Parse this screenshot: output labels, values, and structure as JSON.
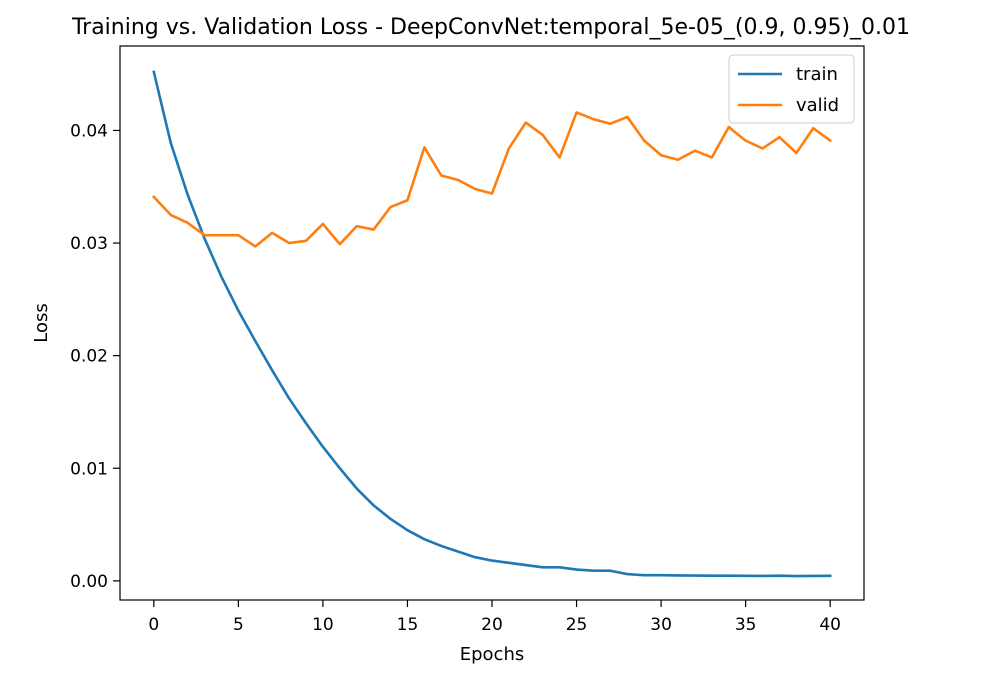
{
  "chart_data": {
    "type": "line",
    "title": "Training vs. Validation Loss - DeepConvNet:temporal_5e-05_(0.9, 0.95)_0.01",
    "xlabel": "Epochs",
    "ylabel": "Loss",
    "xlim": [
      -2,
      42
    ],
    "ylim": [
      -0.0017,
      0.0475
    ],
    "xticks": [
      0,
      5,
      10,
      15,
      20,
      25,
      30,
      35,
      40
    ],
    "xtick_labels": [
      "0",
      "5",
      "10",
      "15",
      "20",
      "25",
      "30",
      "35",
      "40"
    ],
    "yticks": [
      0.0,
      0.01,
      0.02,
      0.03,
      0.04
    ],
    "ytick_labels": [
      "0.00",
      "0.01",
      "0.02",
      "0.03",
      "0.04"
    ],
    "grid": false,
    "legend_position": "top-right",
    "x": [
      0,
      1,
      2,
      3,
      4,
      5,
      6,
      7,
      8,
      9,
      10,
      11,
      12,
      13,
      14,
      15,
      16,
      17,
      18,
      19,
      20,
      21,
      22,
      23,
      24,
      25,
      26,
      27,
      28,
      29,
      30,
      31,
      32,
      33,
      34,
      35,
      36,
      37,
      38,
      39,
      40
    ],
    "series": [
      {
        "name": "train",
        "color": "#1f77b4",
        "values": [
          0.0452,
          0.0389,
          0.0343,
          0.0304,
          0.027,
          0.024,
          0.0213,
          0.0187,
          0.0162,
          0.014,
          0.0119,
          0.01,
          0.0082,
          0.0067,
          0.0055,
          0.0045,
          0.0037,
          0.0031,
          0.0026,
          0.0021,
          0.0018,
          0.0016,
          0.0014,
          0.0012,
          0.0012,
          0.001,
          0.0009,
          0.0009,
          0.0006,
          0.0005,
          0.0005,
          0.00048,
          0.00047,
          0.00046,
          0.00046,
          0.00045,
          0.00044,
          0.00046,
          0.00043,
          0.00044,
          0.00045
        ]
      },
      {
        "name": "valid",
        "color": "#ff7f0e",
        "values": [
          0.0341,
          0.0325,
          0.0318,
          0.0307,
          0.0307,
          0.0307,
          0.0297,
          0.0309,
          0.03,
          0.0302,
          0.0317,
          0.0299,
          0.0315,
          0.0312,
          0.0332,
          0.0338,
          0.0385,
          0.036,
          0.0356,
          0.0348,
          0.0344,
          0.0384,
          0.0407,
          0.0396,
          0.0376,
          0.0416,
          0.041,
          0.0406,
          0.0412,
          0.0391,
          0.0378,
          0.0374,
          0.0382,
          0.0376,
          0.0403,
          0.0391,
          0.0384,
          0.0394,
          0.038,
          0.0402,
          0.0391
        ]
      }
    ]
  }
}
